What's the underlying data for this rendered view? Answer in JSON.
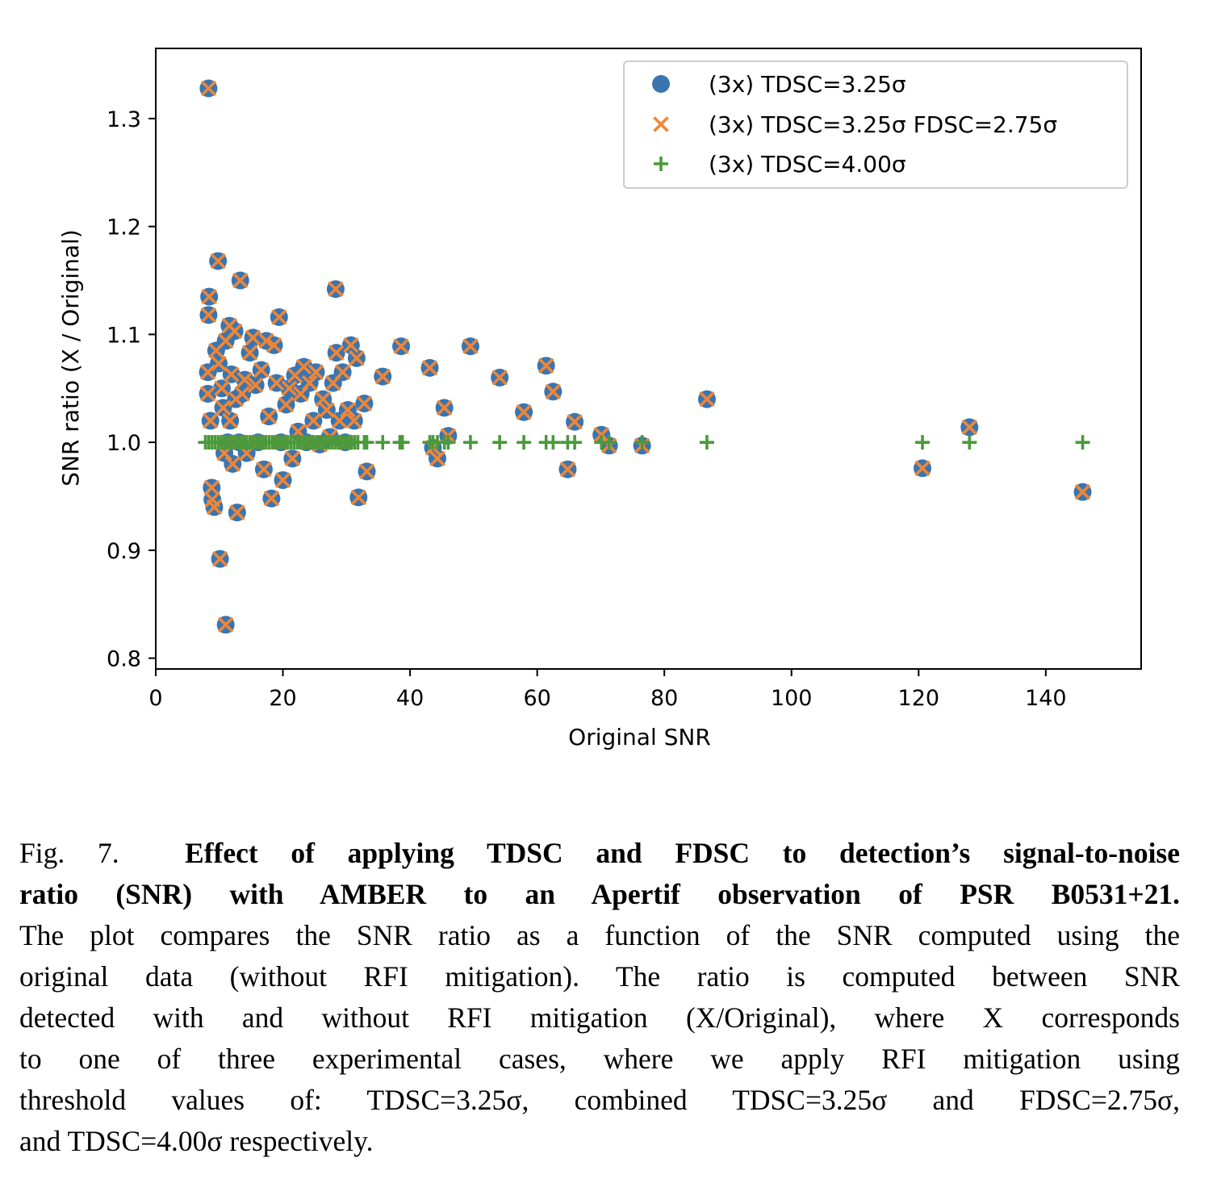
{
  "chart_data": {
    "type": "scatter",
    "xlabel": "Original SNR",
    "ylabel": "SNR ratio (X / Original)",
    "xlim": [
      0,
      155
    ],
    "ylim": [
      0.79,
      1.365
    ],
    "xticks": [
      "0",
      "20",
      "40",
      "60",
      "80",
      "100",
      "120",
      "140"
    ],
    "yticks": [
      "0.8",
      "0.9",
      "1.0",
      "1.1",
      "1.2",
      "1.3"
    ],
    "legend_position": "top-right",
    "colors": {
      "tdsc325": "#3a75b0",
      "tdsc325_fdsc275": "#ef8636",
      "tdsc400": "#4a9a3a"
    },
    "series": [
      {
        "name": "(3x) TDSC=3.25σ",
        "marker": "circle",
        "points": [
          [
            8.3,
            1.328
          ],
          [
            8.4,
            1.135
          ],
          [
            8.3,
            1.118
          ],
          [
            8.2,
            1.065
          ],
          [
            8.2,
            1.045
          ],
          [
            8.6,
            1.02
          ],
          [
            8.8,
            0.958
          ],
          [
            8.9,
            0.947
          ],
          [
            9.2,
            0.94
          ],
          [
            9.5,
            1.085
          ],
          [
            9.8,
            1.168
          ],
          [
            9.9,
            1.073
          ],
          [
            10.1,
            0.892
          ],
          [
            10.4,
            1.05
          ],
          [
            10.6,
            1.032
          ],
          [
            10.8,
            0.99
          ],
          [
            11.0,
            1.094
          ],
          [
            11.0,
            0.831
          ],
          [
            11.3,
            1.0
          ],
          [
            11.6,
            1.108
          ],
          [
            11.7,
            1.02
          ],
          [
            11.9,
            1.063
          ],
          [
            12.1,
            0.98
          ],
          [
            12.4,
            1.103
          ],
          [
            12.6,
            1.04
          ],
          [
            12.8,
            0.935
          ],
          [
            13.1,
            1.0
          ],
          [
            13.3,
            1.15
          ],
          [
            13.6,
            1.045
          ],
          [
            14.0,
            1.058
          ],
          [
            14.3,
            0.99
          ],
          [
            14.8,
            1.083
          ],
          [
            15.3,
            1.097
          ],
          [
            15.7,
            1.053
          ],
          [
            16.1,
            1.0
          ],
          [
            16.6,
            1.067
          ],
          [
            17.0,
            0.975
          ],
          [
            17.4,
            1.094
          ],
          [
            17.8,
            1.024
          ],
          [
            18.2,
            0.948
          ],
          [
            18.6,
            1.09
          ],
          [
            19.0,
            1.055
          ],
          [
            19.4,
            1.116
          ],
          [
            19.7,
            1.0
          ],
          [
            20.0,
            0.965
          ],
          [
            20.5,
            1.035
          ],
          [
            21.0,
            1.05
          ],
          [
            21.5,
            0.985
          ],
          [
            21.9,
            1.062
          ],
          [
            22.4,
            1.01
          ],
          [
            22.8,
            1.045
          ],
          [
            23.3,
            1.07
          ],
          [
            23.7,
            1.0
          ],
          [
            24.2,
            1.055
          ],
          [
            24.8,
            1.02
          ],
          [
            25.2,
            1.065
          ],
          [
            25.8,
            0.998
          ],
          [
            26.3,
            1.04
          ],
          [
            26.9,
            1.03
          ],
          [
            27.4,
            1.005
          ],
          [
            27.9,
            1.055
          ],
          [
            28.4,
            1.083
          ],
          [
            28.3,
            1.142
          ],
          [
            28.9,
            1.02
          ],
          [
            29.4,
            1.065
          ],
          [
            29.8,
            1.0
          ],
          [
            30.2,
            1.03
          ],
          [
            30.7,
            1.09
          ],
          [
            31.2,
            1.02
          ],
          [
            31.6,
            1.078
          ],
          [
            31.9,
            0.949
          ],
          [
            32.8,
            1.036
          ],
          [
            33.2,
            0.973
          ],
          [
            35.7,
            1.061
          ],
          [
            38.6,
            1.089
          ],
          [
            43.1,
            1.069
          ],
          [
            43.6,
            0.995
          ],
          [
            44.3,
            0.985
          ],
          [
            45.4,
            1.032
          ],
          [
            46.0,
            1.006
          ],
          [
            49.5,
            1.089
          ],
          [
            54.1,
            1.06
          ],
          [
            57.9,
            1.028
          ],
          [
            61.4,
            1.071
          ],
          [
            62.5,
            1.047
          ],
          [
            64.8,
            0.975
          ],
          [
            65.9,
            1.019
          ],
          [
            70.1,
            1.007
          ],
          [
            71.3,
            0.997
          ],
          [
            76.5,
            0.997
          ],
          [
            86.7,
            1.04
          ],
          [
            120.6,
            0.976
          ],
          [
            128.0,
            1.014
          ],
          [
            145.8,
            0.954
          ]
        ]
      },
      {
        "name": "(3x) TDSC=3.25σ FDSC=2.75σ",
        "marker": "x",
        "points": [
          [
            8.3,
            1.328
          ],
          [
            8.4,
            1.135
          ],
          [
            8.3,
            1.118
          ],
          [
            8.2,
            1.065
          ],
          [
            8.2,
            1.045
          ],
          [
            8.6,
            1.02
          ],
          [
            8.8,
            0.958
          ],
          [
            8.9,
            0.947
          ],
          [
            9.2,
            0.94
          ],
          [
            9.5,
            1.085
          ],
          [
            9.8,
            1.168
          ],
          [
            9.9,
            1.073
          ],
          [
            10.1,
            0.892
          ],
          [
            10.4,
            1.05
          ],
          [
            10.6,
            1.032
          ],
          [
            10.8,
            0.99
          ],
          [
            11.0,
            1.094
          ],
          [
            11.0,
            0.831
          ],
          [
            11.3,
            1.0
          ],
          [
            11.6,
            1.108
          ],
          [
            11.7,
            1.02
          ],
          [
            11.9,
            1.063
          ],
          [
            12.1,
            0.98
          ],
          [
            12.4,
            1.103
          ],
          [
            12.6,
            1.04
          ],
          [
            12.8,
            0.935
          ],
          [
            13.1,
            1.0
          ],
          [
            13.3,
            1.15
          ],
          [
            13.6,
            1.045
          ],
          [
            14.0,
            1.058
          ],
          [
            14.3,
            0.99
          ],
          [
            14.8,
            1.083
          ],
          [
            15.3,
            1.097
          ],
          [
            15.7,
            1.053
          ],
          [
            16.1,
            1.0
          ],
          [
            16.6,
            1.067
          ],
          [
            17.0,
            0.975
          ],
          [
            17.4,
            1.094
          ],
          [
            17.8,
            1.024
          ],
          [
            18.2,
            0.948
          ],
          [
            18.6,
            1.09
          ],
          [
            19.0,
            1.055
          ],
          [
            19.4,
            1.116
          ],
          [
            19.7,
            1.0
          ],
          [
            20.0,
            0.965
          ],
          [
            20.5,
            1.035
          ],
          [
            21.0,
            1.05
          ],
          [
            21.5,
            0.985
          ],
          [
            21.9,
            1.062
          ],
          [
            22.4,
            1.01
          ],
          [
            22.8,
            1.045
          ],
          [
            23.3,
            1.07
          ],
          [
            23.7,
            1.0
          ],
          [
            24.2,
            1.055
          ],
          [
            24.8,
            1.02
          ],
          [
            25.2,
            1.065
          ],
          [
            25.8,
            0.998
          ],
          [
            26.3,
            1.04
          ],
          [
            26.9,
            1.03
          ],
          [
            27.4,
            1.005
          ],
          [
            27.9,
            1.055
          ],
          [
            28.4,
            1.083
          ],
          [
            28.3,
            1.142
          ],
          [
            28.9,
            1.02
          ],
          [
            29.4,
            1.065
          ],
          [
            29.8,
            1.0
          ],
          [
            30.2,
            1.03
          ],
          [
            30.7,
            1.09
          ],
          [
            31.2,
            1.02
          ],
          [
            31.6,
            1.078
          ],
          [
            31.9,
            0.949
          ],
          [
            32.8,
            1.036
          ],
          [
            33.2,
            0.973
          ],
          [
            35.7,
            1.061
          ],
          [
            38.6,
            1.089
          ],
          [
            43.1,
            1.069
          ],
          [
            43.6,
            0.995
          ],
          [
            44.3,
            0.985
          ],
          [
            45.4,
            1.032
          ],
          [
            46.0,
            1.006
          ],
          [
            49.5,
            1.089
          ],
          [
            54.1,
            1.06
          ],
          [
            57.9,
            1.028
          ],
          [
            61.4,
            1.071
          ],
          [
            62.5,
            1.047
          ],
          [
            64.8,
            0.975
          ],
          [
            65.9,
            1.019
          ],
          [
            70.1,
            1.007
          ],
          [
            71.3,
            0.997
          ],
          [
            76.5,
            0.997
          ],
          [
            86.7,
            1.04
          ],
          [
            120.6,
            0.976
          ],
          [
            128.0,
            1.014
          ],
          [
            145.8,
            0.954
          ]
        ]
      },
      {
        "name": "(3x) TDSC=4.00σ",
        "marker": "plus",
        "points": [
          [
            7.8,
            1.0
          ],
          [
            8.3,
            1.0
          ],
          [
            8.8,
            1.0
          ],
          [
            9.3,
            1.0
          ],
          [
            9.8,
            1.0
          ],
          [
            10.3,
            1.0
          ],
          [
            10.8,
            1.0
          ],
          [
            11.3,
            1.0
          ],
          [
            11.8,
            1.0
          ],
          [
            12.3,
            1.0
          ],
          [
            12.8,
            1.0
          ],
          [
            13.3,
            1.0
          ],
          [
            13.8,
            1.0
          ],
          [
            14.3,
            1.0
          ],
          [
            14.8,
            1.0
          ],
          [
            15.3,
            1.0
          ],
          [
            15.8,
            1.0
          ],
          [
            16.3,
            1.0
          ],
          [
            16.8,
            1.0
          ],
          [
            17.3,
            1.0
          ],
          [
            17.8,
            1.0
          ],
          [
            18.3,
            1.0
          ],
          [
            18.8,
            1.0
          ],
          [
            19.3,
            1.0
          ],
          [
            19.8,
            1.0
          ],
          [
            20.3,
            1.0
          ],
          [
            20.8,
            1.0
          ],
          [
            21.3,
            1.0
          ],
          [
            21.8,
            1.0
          ],
          [
            22.3,
            1.0
          ],
          [
            22.8,
            1.0
          ],
          [
            23.3,
            1.0
          ],
          [
            23.8,
            1.0
          ],
          [
            24.3,
            1.0
          ],
          [
            24.8,
            1.0
          ],
          [
            25.3,
            1.0
          ],
          [
            25.8,
            1.0
          ],
          [
            26.3,
            1.0
          ],
          [
            26.8,
            1.0
          ],
          [
            27.3,
            1.0
          ],
          [
            27.8,
            1.0
          ],
          [
            28.3,
            1.0
          ],
          [
            28.8,
            1.0
          ],
          [
            29.3,
            1.0
          ],
          [
            29.8,
            1.0
          ],
          [
            30.3,
            1.0
          ],
          [
            30.8,
            1.0
          ],
          [
            31.3,
            1.0
          ],
          [
            31.8,
            1.0
          ],
          [
            32.8,
            1.0
          ],
          [
            33.2,
            1.0
          ],
          [
            35.7,
            1.0
          ],
          [
            38.4,
            1.0
          ],
          [
            38.8,
            1.0
          ],
          [
            43.1,
            1.0
          ],
          [
            43.6,
            1.0
          ],
          [
            44.3,
            1.0
          ],
          [
            45.4,
            1.0
          ],
          [
            46.0,
            1.0
          ],
          [
            49.5,
            1.0
          ],
          [
            54.1,
            1.0
          ],
          [
            57.9,
            1.0
          ],
          [
            61.4,
            1.0
          ],
          [
            62.5,
            1.0
          ],
          [
            64.8,
            1.0
          ],
          [
            65.9,
            1.0
          ],
          [
            70.1,
            1.0
          ],
          [
            71.3,
            1.0
          ],
          [
            76.5,
            1.0
          ],
          [
            86.7,
            1.0
          ],
          [
            120.6,
            1.0
          ],
          [
            128.0,
            1.0
          ],
          [
            145.8,
            1.0
          ]
        ]
      }
    ]
  },
  "caption": {
    "label": "Fig. 7.",
    "title_line1": "Effect of applying TDSC and FDSC to detection’s signal-to-noise",
    "title_line2": "ratio (SNR) with AMBER to an Apertif observation of PSR B0531+21.",
    "lines": [
      "The plot compares the SNR ratio as a function of the SNR computed using the",
      "original data (without RFI mitigation). The ratio is computed between SNR",
      "detected with and without RFI mitigation (X/Original), where X corresponds",
      "to one of three experimental cases, where we apply RFI mitigation using",
      "threshold values of: TDSC=3.25σ, combined TDSC=3.25σ and FDSC=2.75σ,",
      "and TDSC=4.00σ respectively."
    ]
  }
}
